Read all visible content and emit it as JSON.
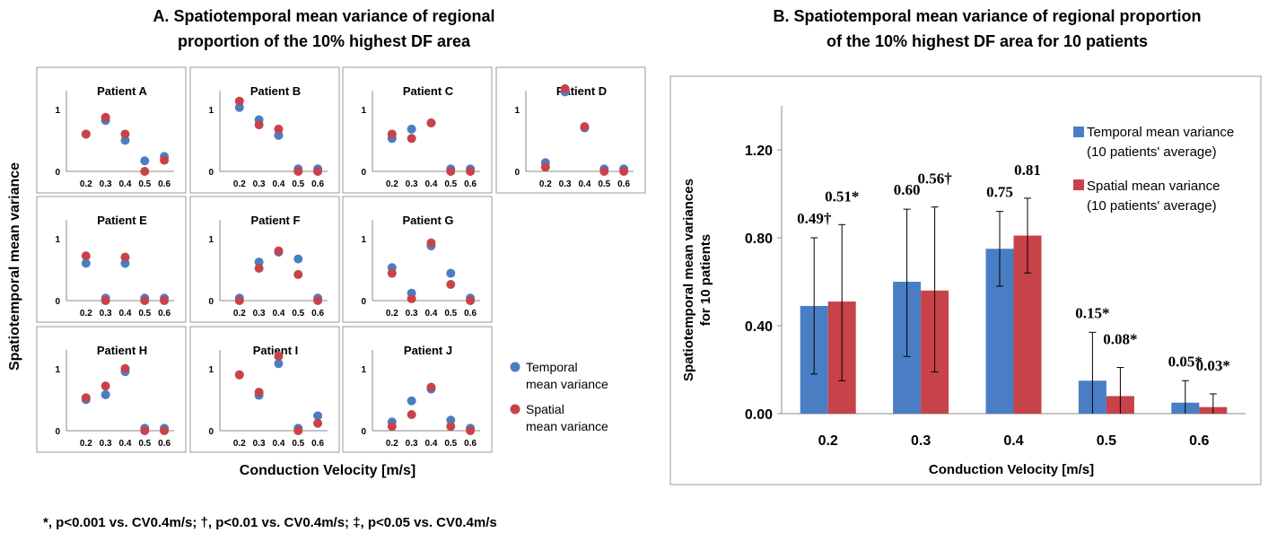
{
  "panel_a": {
    "title_line1": "A. Spatiotemporal mean variance of regional",
    "title_line2": "proportion of the 10% highest DF area",
    "ylabel": "Spatiotemporal mean variance",
    "xlabel": "Conduction Velocity [m/s]",
    "legend": {
      "temporal_line1": "Temporal",
      "temporal_line2": "mean variance",
      "spatial_line1": "Spatial",
      "spatial_line2": "mean variance"
    }
  },
  "panel_b": {
    "title_line1": "B. Spatiotemporal mean variance of regional proportion",
    "title_line2": "of the 10% highest DF area for 10 patients",
    "ylabel_line1": "Spatiotemporal mean variances",
    "ylabel_line2": "for 10 patients",
    "xlabel": "Conduction Velocity [m/s]",
    "legend": {
      "temporal_line1": "Temporal mean variance",
      "temporal_line2": "(10 patients' average)",
      "spatial_line1": "Spatial mean variance",
      "spatial_line2": "(10 patients' average)"
    }
  },
  "footnote": "*, p<0.001 vs. CV0.4m/s; †, p<0.01 vs. CV0.4m/s; ‡, p<0.05 vs. CV0.4m/s",
  "colors": {
    "temporal": "#4a7ec4",
    "spatial": "#c8424a",
    "axis": "#888888"
  },
  "chart_data": [
    {
      "type": "scatter",
      "title": "Patient A",
      "x": [
        0.2,
        0.3,
        0.4,
        0.5,
        0.6
      ],
      "xtick_labels": [
        "0.2",
        "0.3",
        "0.4",
        "0.5",
        "0.6"
      ],
      "yticks": [
        0,
        1
      ],
      "ylim": [
        0,
        1.3
      ],
      "series": [
        {
          "name": "Temporal mean variance",
          "values": [
            0.6,
            0.82,
            0.5,
            0.17,
            0.24
          ]
        },
        {
          "name": "Spatial mean variance",
          "values": [
            0.6,
            0.87,
            0.6,
            0.0,
            0.18
          ]
        }
      ]
    },
    {
      "type": "scatter",
      "title": "Patient B",
      "x": [
        0.2,
        0.3,
        0.4,
        0.5,
        0.6
      ],
      "xtick_labels": [
        "0.2",
        "0.3",
        "0.4",
        "0.5",
        "0.6"
      ],
      "yticks": [
        0,
        1
      ],
      "ylim": [
        0,
        1.3
      ],
      "series": [
        {
          "name": "Temporal mean variance",
          "values": [
            1.03,
            0.83,
            0.58,
            0.04,
            0.04
          ]
        },
        {
          "name": "Spatial mean variance",
          "values": [
            1.13,
            0.75,
            0.68,
            0.0,
            0.0
          ]
        }
      ]
    },
    {
      "type": "scatter",
      "title": "Patient C",
      "x": [
        0.2,
        0.3,
        0.4,
        0.5,
        0.6
      ],
      "xtick_labels": [
        "0.2",
        "0.3",
        "0.4",
        "0.5",
        "0.6"
      ],
      "yticks": [
        0,
        1
      ],
      "ylim": [
        0,
        1.3
      ],
      "series": [
        {
          "name": "Temporal mean variance",
          "values": [
            0.53,
            0.68,
            0.78,
            0.04,
            0.04
          ]
        },
        {
          "name": "Spatial mean variance",
          "values": [
            0.6,
            0.53,
            0.78,
            0.0,
            0.0
          ]
        }
      ]
    },
    {
      "type": "scatter",
      "title": "Patient D",
      "x": [
        0.2,
        0.3,
        0.4,
        0.5,
        0.6
      ],
      "xtick_labels": [
        "0.2",
        "0.3",
        "0.4",
        "0.5",
        "0.6"
      ],
      "yticks": [
        0,
        1
      ],
      "ylim": [
        0,
        1.3
      ],
      "series": [
        {
          "name": "Temporal mean variance",
          "values": [
            0.14,
            1.28,
            0.7,
            0.04,
            0.04
          ]
        },
        {
          "name": "Spatial mean variance",
          "values": [
            0.07,
            1.33,
            0.72,
            0.0,
            0.0
          ]
        }
      ]
    },
    {
      "type": "scatter",
      "title": "Patient E",
      "x": [
        0.2,
        0.3,
        0.4,
        0.5,
        0.6
      ],
      "xtick_labels": [
        "0.2",
        "0.3",
        "0.4",
        "0.5",
        "0.6"
      ],
      "yticks": [
        0,
        1
      ],
      "ylim": [
        0,
        1.3
      ],
      "series": [
        {
          "name": "Temporal mean variance",
          "values": [
            0.6,
            0.04,
            0.6,
            0.04,
            0.04
          ]
        },
        {
          "name": "Spatial mean variance",
          "values": [
            0.72,
            0.0,
            0.7,
            0.0,
            0.0
          ]
        }
      ]
    },
    {
      "type": "scatter",
      "title": "Patient F",
      "x": [
        0.2,
        0.3,
        0.4,
        0.5,
        0.6
      ],
      "xtick_labels": [
        "0.2",
        "0.3",
        "0.4",
        "0.5",
        "0.6"
      ],
      "yticks": [
        0,
        1
      ],
      "ylim": [
        0,
        1.3
      ],
      "series": [
        {
          "name": "Temporal mean variance",
          "values": [
            0.04,
            0.62,
            0.78,
            0.67,
            0.04
          ]
        },
        {
          "name": "Spatial mean variance",
          "values": [
            0.0,
            0.52,
            0.8,
            0.42,
            0.0
          ]
        }
      ]
    },
    {
      "type": "scatter",
      "title": "Patient G",
      "x": [
        0.2,
        0.3,
        0.4,
        0.5,
        0.6
      ],
      "xtick_labels": [
        "0.2",
        "0.3",
        "0.4",
        "0.5",
        "0.6"
      ],
      "yticks": [
        0,
        1
      ],
      "ylim": [
        0,
        1.3
      ],
      "series": [
        {
          "name": "Temporal mean variance",
          "values": [
            0.53,
            0.12,
            0.88,
            0.44,
            0.04
          ]
        },
        {
          "name": "Spatial mean variance",
          "values": [
            0.44,
            0.03,
            0.93,
            0.26,
            0.0
          ]
        }
      ]
    },
    {
      "type": "scatter",
      "title": "Patient H",
      "x": [
        0.2,
        0.3,
        0.4,
        0.5,
        0.6
      ],
      "xtick_labels": [
        "0.2",
        "0.3",
        "0.4",
        "0.5",
        "0.6"
      ],
      "yticks": [
        0,
        1
      ],
      "ylim": [
        0,
        1.3
      ],
      "series": [
        {
          "name": "Temporal mean variance",
          "values": [
            0.5,
            0.58,
            0.95,
            0.04,
            0.04
          ]
        },
        {
          "name": "Spatial mean variance",
          "values": [
            0.53,
            0.72,
            1.0,
            0.0,
            0.0
          ]
        }
      ]
    },
    {
      "type": "scatter",
      "title": "Patient I",
      "x": [
        0.2,
        0.3,
        0.4,
        0.5,
        0.6
      ],
      "xtick_labels": [
        "0.2",
        "0.3",
        "0.4",
        "0.5",
        "0.6"
      ],
      "yticks": [
        0,
        1
      ],
      "ylim": [
        0,
        1.3
      ],
      "series": [
        {
          "name": "Temporal mean variance",
          "values": [
            0.9,
            0.57,
            1.08,
            0.04,
            0.24
          ]
        },
        {
          "name": "Spatial mean variance",
          "values": [
            0.9,
            0.62,
            1.2,
            0.0,
            0.12
          ]
        }
      ]
    },
    {
      "type": "scatter",
      "title": "Patient J",
      "x": [
        0.2,
        0.3,
        0.4,
        0.5,
        0.6
      ],
      "xtick_labels": [
        "0.2",
        "0.3",
        "0.4",
        "0.5",
        "0.6"
      ],
      "yticks": [
        0,
        1
      ],
      "ylim": [
        0,
        1.3
      ],
      "series": [
        {
          "name": "Temporal mean variance",
          "values": [
            0.14,
            0.48,
            0.67,
            0.17,
            0.04
          ]
        },
        {
          "name": "Spatial mean variance",
          "values": [
            0.07,
            0.26,
            0.7,
            0.07,
            0.0
          ]
        }
      ]
    },
    {
      "type": "bar",
      "title": "B. Spatiotemporal mean variance of regional proportion of the 10% highest DF area for 10 patients",
      "categories": [
        "0.2",
        "0.3",
        "0.4",
        "0.5",
        "0.6"
      ],
      "ylim": [
        0,
        1.4
      ],
      "yticks": [
        0.0,
        0.4,
        0.8,
        1.2
      ],
      "ytick_labels": [
        "0.00",
        "0.40",
        "0.80",
        "1.20"
      ],
      "legend_position": "top-right",
      "series": [
        {
          "name": "Temporal mean variance (10 patients' average)",
          "values": [
            0.49,
            0.6,
            0.75,
            0.15,
            0.05
          ],
          "err_low": [
            0.18,
            0.26,
            0.58,
            0.0,
            0.0
          ],
          "err_high": [
            0.8,
            0.93,
            0.92,
            0.37,
            0.15
          ],
          "labels": [
            "0.49†",
            "0.60",
            "0.75",
            "0.15*",
            "0.05*"
          ]
        },
        {
          "name": "Spatial mean variance (10 patients' average)",
          "values": [
            0.51,
            0.56,
            0.81,
            0.08,
            0.03
          ],
          "err_low": [
            0.15,
            0.19,
            0.64,
            0.0,
            0.0
          ],
          "err_high": [
            0.86,
            0.94,
            0.98,
            0.21,
            0.09
          ],
          "labels": [
            "0.51*",
            "0.56†",
            "0.81",
            "0.08*",
            "0.03*"
          ]
        }
      ]
    }
  ]
}
